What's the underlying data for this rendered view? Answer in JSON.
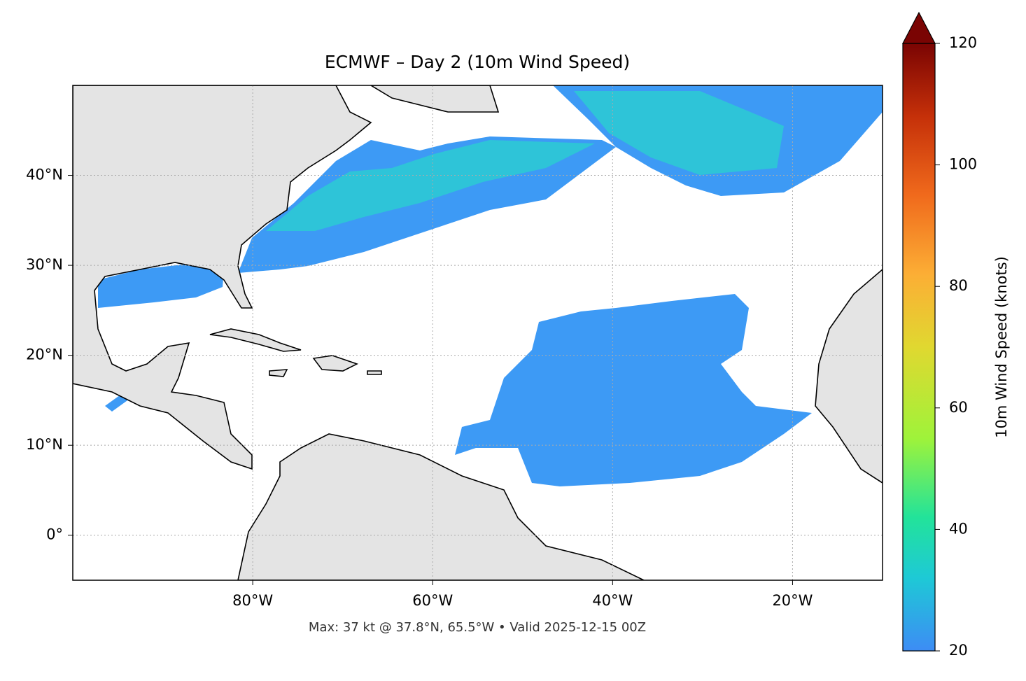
{
  "chart_data": {
    "type": "map",
    "title": "ECMWF – Day 2 (10m Wind Speed)",
    "note": "Max: 37 kt @ 37.8°N, 65.5°W • Valid 2025-12-15 00Z",
    "xlim": [
      -100,
      -10
    ],
    "ylim": [
      -5,
      50
    ],
    "xticks": [
      {
        "value": -80,
        "label": "80°W"
      },
      {
        "value": -60,
        "label": "60°W"
      },
      {
        "value": -40,
        "label": "40°W"
      },
      {
        "value": -20,
        "label": "20°W"
      }
    ],
    "yticks": [
      {
        "value": 0,
        "label": "0°"
      },
      {
        "value": 10,
        "label": "10°N"
      },
      {
        "value": 20,
        "label": "20°N"
      },
      {
        "value": 30,
        "label": "30°N"
      },
      {
        "value": 40,
        "label": "40°N"
      }
    ],
    "grid": true,
    "colorbar": {
      "label": "10m Wind Speed (knots)",
      "lim": [
        20,
        120
      ],
      "ticks": [
        20,
        40,
        60,
        80,
        100,
        120
      ]
    }
  }
}
